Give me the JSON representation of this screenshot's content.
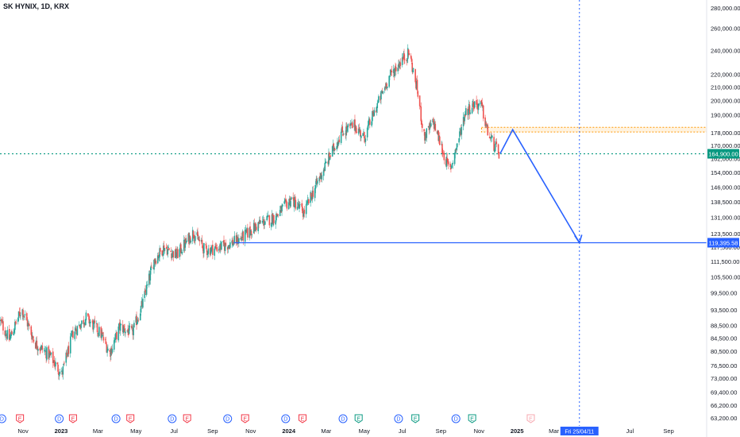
{
  "title": "SK HYNIX, 1D, KRX",
  "colors": {
    "up": "#26a69a",
    "down": "#ef5350",
    "price_line": "#089981",
    "drawing": "#2962ff",
    "zone_fill": "#fff3e0",
    "zone_border": "#ff9800",
    "axis_text": "#131722",
    "event_div": "#2962ff",
    "event_earn": "#f23645",
    "event_earn_past": "#089981"
  },
  "chart_data": {
    "type": "candlestick",
    "title": "SK HYNIX, 1D, KRX",
    "y_scale": "log",
    "ylim": [
      62000,
      288000
    ],
    "x_range": [
      "2022-09-25",
      "2025-11-01"
    ],
    "grid": false,
    "y_ticks": [
      280000,
      260000,
      240000,
      220000,
      210000,
      200000,
      190000,
      178000,
      170000,
      162000,
      154000,
      146000,
      138500,
      131000,
      123500,
      117500,
      111500,
      105500,
      99500,
      93500,
      88500,
      84500,
      80500,
      76500,
      73000,
      69400,
      66200,
      63200
    ],
    "y_tick_labels": [
      "280,000.00",
      "260,000.00",
      "240,000.00",
      "220,000.00",
      "210,000.00",
      "200,000.00",
      "190,000.00",
      "178,000.00",
      "170,000.00",
      "162,000.00",
      "154,000.00",
      "146,000.00",
      "138,500.00",
      "131,000.00",
      "123,500.00",
      "117,500.00",
      "111,500.00",
      "105,500.00",
      "99,500.00",
      "93,500.00",
      "88,500.00",
      "84,500.00",
      "80,500.00",
      "76,500.00",
      "73,000.00",
      "69,400.00",
      "66,200.00",
      "63,200.00"
    ],
    "x_ticks": [
      {
        "date": "2022-11-01",
        "label": "Nov"
      },
      {
        "date": "2023-01-01",
        "label": "2023",
        "bold": true
      },
      {
        "date": "2023-03-01",
        "label": "Mar"
      },
      {
        "date": "2023-05-01",
        "label": "May"
      },
      {
        "date": "2023-07-01",
        "label": "Jul"
      },
      {
        "date": "2023-09-01",
        "label": "Sep"
      },
      {
        "date": "2023-11-01",
        "label": "Nov"
      },
      {
        "date": "2024-01-01",
        "label": "2024",
        "bold": true
      },
      {
        "date": "2024-03-01",
        "label": "Mar"
      },
      {
        "date": "2024-05-01",
        "label": "May"
      },
      {
        "date": "2024-07-01",
        "label": "Jul"
      },
      {
        "date": "2024-09-01",
        "label": "Sep"
      },
      {
        "date": "2024-11-01",
        "label": "Nov"
      },
      {
        "date": "2025-01-01",
        "label": "2025",
        "bold": true
      },
      {
        "date": "2025-03-01",
        "label": "Mar"
      },
      {
        "date": "2025-07-01",
        "label": "Jul"
      },
      {
        "date": "2025-09-01",
        "label": "Sep"
      }
    ],
    "price_path": [
      [
        "2022-09-25",
        90000
      ],
      [
        "2022-10-10",
        84000
      ],
      [
        "2022-10-30",
        94000
      ],
      [
        "2022-11-20",
        83000
      ],
      [
        "2022-12-15",
        79000
      ],
      [
        "2023-01-02",
        74000
      ],
      [
        "2023-01-20",
        86000
      ],
      [
        "2023-02-10",
        91000
      ],
      [
        "2023-03-05",
        86000
      ],
      [
        "2023-03-20",
        80000
      ],
      [
        "2023-04-05",
        88000
      ],
      [
        "2023-04-25",
        86000
      ],
      [
        "2023-05-12",
        96000
      ],
      [
        "2023-05-30",
        112000
      ],
      [
        "2023-06-15",
        117500
      ],
      [
        "2023-07-05",
        114000
      ],
      [
        "2023-08-01",
        124000
      ],
      [
        "2023-08-20",
        116000
      ],
      [
        "2023-09-20",
        118000
      ],
      [
        "2023-10-15",
        121000
      ],
      [
        "2023-11-15",
        128000
      ],
      [
        "2023-12-10",
        131000
      ],
      [
        "2024-01-05",
        140000
      ],
      [
        "2024-01-25",
        133000
      ],
      [
        "2024-02-15",
        148000
      ],
      [
        "2024-03-05",
        162000
      ],
      [
        "2024-03-25",
        178000
      ],
      [
        "2024-04-15",
        183000
      ],
      [
        "2024-05-01",
        175000
      ],
      [
        "2024-05-20",
        195000
      ],
      [
        "2024-06-10",
        218000
      ],
      [
        "2024-06-30",
        232000
      ],
      [
        "2024-07-12",
        238000
      ],
      [
        "2024-07-25",
        208000
      ],
      [
        "2024-08-05",
        175000
      ],
      [
        "2024-08-20",
        185000
      ],
      [
        "2024-09-05",
        165000
      ],
      [
        "2024-09-15",
        155000
      ],
      [
        "2024-09-28",
        172000
      ],
      [
        "2024-10-10",
        192000
      ],
      [
        "2024-10-25",
        198000
      ],
      [
        "2024-11-05",
        196000
      ],
      [
        "2024-11-15",
        178000
      ],
      [
        "2024-11-25",
        170000
      ],
      [
        "2024-12-03",
        164900
      ]
    ],
    "last_price": 164900,
    "last_price_label": "164,900.00",
    "target_price": 119395.58,
    "target_label": "119,395.58",
    "resistance_zone": {
      "from_date": "2024-11-05",
      "to_date": "2025-11-01",
      "low": 178500,
      "high": 181500
    },
    "drawings": {
      "path": [
        [
          "2024-12-05",
          165000
        ],
        [
          "2024-12-25",
          180000
        ],
        [
          "2025-04-11",
          119395.58
        ]
      ],
      "horizontal_line": {
        "from_date": "2023-10-05",
        "value": 119395.58
      }
    },
    "vertical_marker": {
      "date": "2025-04-11",
      "label": "Fri 25/04/11"
    },
    "events": [
      {
        "date": "2022-09-28",
        "type": "dividend",
        "label": "D"
      },
      {
        "date": "2022-10-27",
        "type": "earnings",
        "label": "E"
      },
      {
        "date": "2022-12-29",
        "type": "dividend",
        "label": "D"
      },
      {
        "date": "2023-01-20",
        "type": "earnings",
        "label": "E"
      },
      {
        "date": "2023-03-30",
        "type": "dividend",
        "label": "D"
      },
      {
        "date": "2023-04-22",
        "type": "earnings",
        "label": "E"
      },
      {
        "date": "2023-06-28",
        "type": "dividend",
        "label": "D"
      },
      {
        "date": "2023-07-22",
        "type": "earnings",
        "label": "E"
      },
      {
        "date": "2023-09-25",
        "type": "dividend",
        "label": "D"
      },
      {
        "date": "2023-10-23",
        "type": "earnings",
        "label": "E"
      },
      {
        "date": "2023-12-27",
        "type": "dividend",
        "label": "D"
      },
      {
        "date": "2024-01-23",
        "type": "earnings",
        "label": "E"
      },
      {
        "date": "2024-03-28",
        "type": "dividend",
        "label": "D"
      },
      {
        "date": "2024-04-22",
        "type": "earnings_past",
        "label": "E"
      },
      {
        "date": "2024-06-25",
        "type": "dividend",
        "label": "D"
      },
      {
        "date": "2024-07-22",
        "type": "earnings_past",
        "label": "E"
      },
      {
        "date": "2024-09-25",
        "type": "dividend",
        "label": "D"
      },
      {
        "date": "2024-10-21",
        "type": "earnings_past",
        "label": "E"
      },
      {
        "date": "2025-01-23",
        "type": "earnings_future",
        "label": "E"
      }
    ]
  }
}
